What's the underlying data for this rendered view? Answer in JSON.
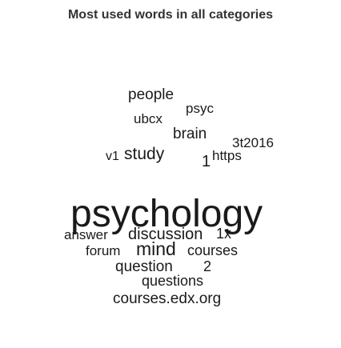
{
  "chart_data": {
    "type": "wordcloud",
    "title": "Most used words in all categories",
    "words": [
      {
        "text": "psychology",
        "weight": 10
      },
      {
        "text": "people",
        "weight": 3
      },
      {
        "text": "psyc",
        "weight": 2.5
      },
      {
        "text": "ubcx",
        "weight": 2.5
      },
      {
        "text": "brain",
        "weight": 3
      },
      {
        "text": "3t2016",
        "weight": 2.5
      },
      {
        "text": "v1",
        "weight": 2
      },
      {
        "text": "study",
        "weight": 3
      },
      {
        "text": "1",
        "weight": 3
      },
      {
        "text": "https",
        "weight": 2.5
      },
      {
        "text": "answer",
        "weight": 2.5
      },
      {
        "text": "discussion",
        "weight": 3.5
      },
      {
        "text": "1x",
        "weight": 3
      },
      {
        "text": "forum",
        "weight": 2.5
      },
      {
        "text": "mind",
        "weight": 3.5
      },
      {
        "text": "courses",
        "weight": 3
      },
      {
        "text": "question",
        "weight": 3
      },
      {
        "text": "2",
        "weight": 3
      },
      {
        "text": "questions",
        "weight": 3
      },
      {
        "text": "courses.edx.org",
        "weight": 3
      }
    ]
  }
}
